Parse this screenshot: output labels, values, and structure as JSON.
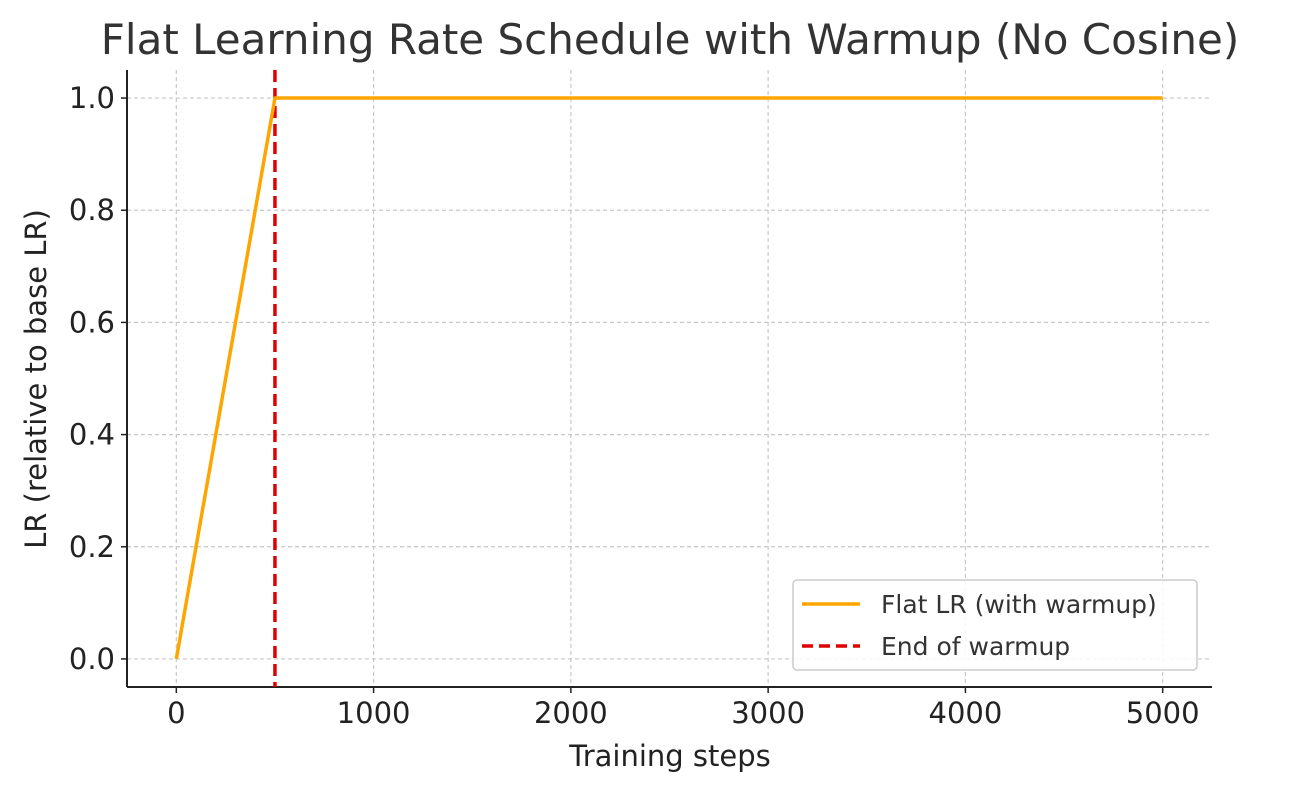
{
  "chart_data": {
    "type": "line",
    "title": "Flat Learning Rate Schedule with Warmup (No Cosine)",
    "xlabel": "Training steps",
    "ylabel": "LR (relative to base LR)",
    "xlim": [
      -250,
      5250
    ],
    "ylim": [
      -0.05,
      1.05
    ],
    "xticks": [
      0,
      1000,
      2000,
      3000,
      4000,
      5000
    ],
    "xtick_labels": [
      "0",
      "1000",
      "2000",
      "3000",
      "4000",
      "5000"
    ],
    "yticks": [
      0.0,
      0.2,
      0.4,
      0.6,
      0.8,
      1.0
    ],
    "ytick_labels": [
      "0.0",
      "0.2",
      "0.4",
      "0.6",
      "0.8",
      "1.0"
    ],
    "grid": true,
    "legend_position": "lower-right",
    "series": [
      {
        "name": "Flat LR (with warmup)",
        "color": "#FFA500",
        "style": "solid",
        "x": [
          0,
          500,
          5000
        ],
        "y": [
          0.0,
          1.0,
          1.0
        ]
      }
    ],
    "vlines": [
      {
        "name": "End of warmup",
        "x": 500,
        "color": "#E00000",
        "style": "dashed"
      }
    ]
  }
}
